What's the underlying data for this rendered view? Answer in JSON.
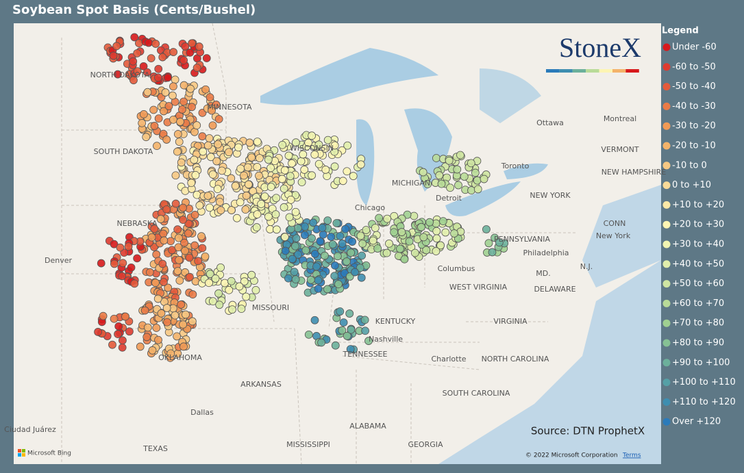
{
  "header": {
    "title": "Soybean Spot Basis (Cents/Bushel)"
  },
  "legend": {
    "title": "Legend",
    "items": [
      {
        "label": "Under -60",
        "color": "#d7191c"
      },
      {
        "label": "-60 to -50",
        "color": "#dd3b30"
      },
      {
        "label": "-50 to -40",
        "color": "#e35a3b"
      },
      {
        "label": "-40 to -30",
        "color": "#ea7b47"
      },
      {
        "label": "-30 to -20",
        "color": "#f09a56"
      },
      {
        "label": "-20 to -10",
        "color": "#f4b36a"
      },
      {
        "label": "-10 to 0",
        "color": "#f7c883"
      },
      {
        "label": "0 to +10",
        "color": "#f9da98"
      },
      {
        "label": "+10 to +20",
        "color": "#fbe8a6"
      },
      {
        "label": "+20 to +30",
        "color": "#fdf5b3"
      },
      {
        "label": "+30 to +40",
        "color": "#f2f5b1"
      },
      {
        "label": "+40 to +50",
        "color": "#e1eeab"
      },
      {
        "label": "+50 to +60",
        "color": "#cfe5a2"
      },
      {
        "label": "+60 to +70",
        "color": "#b9db98"
      },
      {
        "label": "+70 to +80",
        "color": "#a0d091"
      },
      {
        "label": "+80 to +90",
        "color": "#86c194"
      },
      {
        "label": "+90 to +100",
        "color": "#6cb09b"
      },
      {
        "label": "+100 to +110",
        "color": "#55a0a6"
      },
      {
        "label": "+110 to +120",
        "color": "#3e8eb0"
      },
      {
        "label": "Over +120",
        "color": "#2b7bba"
      }
    ]
  },
  "logo": "StoneX",
  "source": "Source: DTN ProphetX",
  "map": {
    "labels": [
      "NORTH DAKOTA",
      "MINNESOTA",
      "SOUTH DAKOTA",
      "WISCONSIN",
      "MICHIGAN",
      "NEBRASKA",
      "Denver",
      "Chicago",
      "Detroit",
      "Toronto",
      "Ottawa",
      "Montreal",
      "VERMONT",
      "NEW HAMPSHIRE",
      "NEW YORK",
      "PENNSYLVANIA",
      "CONN",
      "New York",
      "Philadelphia",
      "N.J.",
      "MD.",
      "DELAWARE",
      "Columbus",
      "WEST VIRGINIA",
      "MISSOURI",
      "KENTUCKY",
      "VIRGINIA",
      "Nashville",
      "TENNESSEE",
      "Charlotte",
      "NORTH CAROLINA",
      "OKLAHOMA",
      "ARKANSAS",
      "SOUTH CAROLINA",
      "Dallas",
      "Ciudad Juárez",
      "ALABAMA",
      "MISSISSIPPI",
      "GEORGIA",
      "TEXAS"
    ],
    "attribution": "Microsoft Bing",
    "copyright": "© 2022 Microsoft Corporation",
    "terms": "Terms"
  }
}
